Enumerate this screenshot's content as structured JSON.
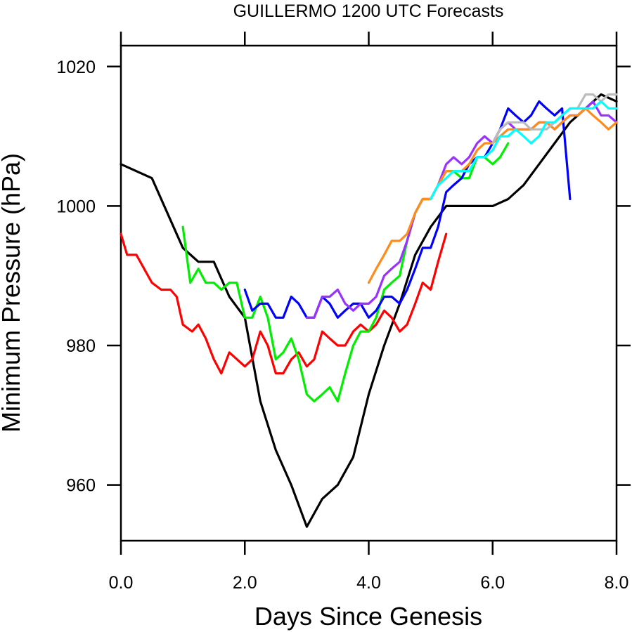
{
  "chart_data": {
    "type": "line",
    "title": "GUILLERMO 1200 UTC Forecasts",
    "xlabel": "Days Since Genesis",
    "ylabel": "Minimum Pressure (hPa)",
    "xlim": [
      0,
      8
    ],
    "ylim": [
      952,
      1023
    ],
    "x_ticks": [
      0,
      2,
      4,
      6,
      8
    ],
    "x_tick_labels": [
      "0.0",
      "2.0",
      "4.0",
      "6.0",
      "8.0"
    ],
    "y_ticks": [
      960,
      980,
      1000,
      1020
    ],
    "y_tick_labels": [
      "960",
      "980",
      "1000",
      "1020"
    ],
    "grid": false,
    "legend": "none",
    "series": [
      {
        "color": "#000000",
        "points": [
          [
            0,
            1006
          ],
          [
            0.5,
            1004
          ],
          [
            1.0,
            994
          ],
          [
            1.25,
            992
          ],
          [
            1.5,
            992
          ],
          [
            1.75,
            987
          ],
          [
            2.0,
            984
          ],
          [
            2.25,
            972
          ],
          [
            2.5,
            965
          ],
          [
            2.75,
            960
          ],
          [
            3.0,
            954
          ],
          [
            3.25,
            958
          ],
          [
            3.5,
            960
          ],
          [
            3.75,
            964
          ],
          [
            4.0,
            973
          ],
          [
            4.25,
            980
          ],
          [
            4.5,
            986
          ],
          [
            4.75,
            993
          ],
          [
            5.0,
            997
          ],
          [
            5.25,
            1000
          ],
          [
            5.5,
            1000
          ],
          [
            6.0,
            1000
          ],
          [
            6.25,
            1001
          ],
          [
            6.5,
            1003
          ],
          [
            6.75,
            1006
          ],
          [
            7.0,
            1009
          ],
          [
            7.25,
            1012
          ],
          [
            7.5,
            1014
          ],
          [
            7.75,
            1016
          ],
          [
            8.0,
            1015
          ]
        ]
      },
      {
        "color": "#ff0000",
        "points": [
          [
            0,
            996
          ],
          [
            0.1,
            993
          ],
          [
            0.25,
            993
          ],
          [
            0.5,
            989
          ],
          [
            0.65,
            988
          ],
          [
            0.8,
            988
          ],
          [
            0.9,
            987
          ],
          [
            1.0,
            983
          ],
          [
            1.15,
            982
          ],
          [
            1.25,
            983
          ],
          [
            1.37,
            981
          ],
          [
            1.5,
            978
          ],
          [
            1.62,
            976
          ],
          [
            1.75,
            979
          ],
          [
            2.0,
            977
          ],
          [
            2.12,
            978
          ],
          [
            2.25,
            982
          ],
          [
            2.37,
            980
          ],
          [
            2.5,
            976
          ],
          [
            2.62,
            976
          ],
          [
            2.75,
            978
          ],
          [
            2.87,
            979
          ],
          [
            3.0,
            977
          ],
          [
            3.12,
            978
          ],
          [
            3.25,
            982
          ],
          [
            3.37,
            981
          ],
          [
            3.5,
            980
          ],
          [
            3.62,
            980
          ],
          [
            3.75,
            982
          ],
          [
            3.87,
            983
          ],
          [
            4.0,
            982
          ],
          [
            4.12,
            983
          ],
          [
            4.25,
            985
          ],
          [
            4.37,
            984
          ],
          [
            4.5,
            982
          ],
          [
            4.62,
            983
          ],
          [
            4.75,
            986
          ],
          [
            4.87,
            989
          ],
          [
            5.0,
            988
          ],
          [
            5.12,
            992
          ],
          [
            5.25,
            996
          ]
        ]
      },
      {
        "color": "#00ee00",
        "points": [
          [
            1.0,
            997
          ],
          [
            1.12,
            989
          ],
          [
            1.25,
            991
          ],
          [
            1.37,
            989
          ],
          [
            1.5,
            989
          ],
          [
            1.62,
            988
          ],
          [
            1.75,
            989
          ],
          [
            1.87,
            989
          ],
          [
            2.0,
            984
          ],
          [
            2.12,
            984
          ],
          [
            2.25,
            987
          ],
          [
            2.37,
            984
          ],
          [
            2.5,
            978
          ],
          [
            2.62,
            979
          ],
          [
            2.75,
            981
          ],
          [
            2.87,
            978
          ],
          [
            3.0,
            973
          ],
          [
            3.12,
            972
          ],
          [
            3.25,
            973
          ],
          [
            3.37,
            974
          ],
          [
            3.5,
            972
          ],
          [
            3.62,
            976
          ],
          [
            3.75,
            980
          ],
          [
            3.87,
            982
          ],
          [
            4.0,
            982
          ],
          [
            4.12,
            984
          ],
          [
            4.25,
            988
          ],
          [
            4.37,
            989
          ],
          [
            4.5,
            990
          ],
          [
            4.62,
            995
          ],
          [
            4.75,
            999
          ],
          [
            4.87,
            1001
          ],
          [
            5.0,
            1001
          ],
          [
            5.12,
            1003
          ],
          [
            5.25,
            1005
          ],
          [
            5.37,
            1005
          ],
          [
            5.5,
            1004
          ],
          [
            5.62,
            1004
          ],
          [
            5.75,
            1007
          ],
          [
            5.87,
            1007
          ],
          [
            6.0,
            1006
          ],
          [
            6.12,
            1007
          ],
          [
            6.25,
            1009
          ]
        ]
      },
      {
        "color": "#0000ff",
        "points": [
          [
            2.0,
            988
          ],
          [
            2.12,
            985
          ],
          [
            2.25,
            986
          ],
          [
            2.37,
            986
          ],
          [
            2.5,
            984
          ],
          [
            2.62,
            984
          ],
          [
            2.75,
            987
          ],
          [
            2.87,
            986
          ],
          [
            3.0,
            984
          ],
          [
            3.12,
            984
          ],
          [
            3.25,
            987
          ],
          [
            3.37,
            986
          ],
          [
            3.5,
            984
          ],
          [
            3.62,
            985
          ],
          [
            3.75,
            986
          ],
          [
            3.87,
            986
          ],
          [
            4.0,
            984
          ],
          [
            4.12,
            985
          ],
          [
            4.25,
            987
          ],
          [
            4.37,
            987
          ],
          [
            4.5,
            986
          ],
          [
            4.62,
            988
          ],
          [
            4.75,
            991
          ],
          [
            4.87,
            994
          ],
          [
            5.0,
            994
          ],
          [
            5.12,
            997
          ],
          [
            5.25,
            1002
          ],
          [
            5.37,
            1003
          ],
          [
            5.5,
            1004
          ],
          [
            5.62,
            1006
          ],
          [
            5.75,
            1007
          ],
          [
            5.87,
            1007
          ],
          [
            6.0,
            1009
          ],
          [
            6.12,
            1011
          ],
          [
            6.25,
            1014
          ],
          [
            6.37,
            1013
          ],
          [
            6.5,
            1012
          ],
          [
            6.62,
            1013
          ],
          [
            6.75,
            1015
          ],
          [
            6.87,
            1014
          ],
          [
            7.0,
            1013
          ],
          [
            7.12,
            1014
          ],
          [
            7.25,
            1001
          ]
        ]
      },
      {
        "color": "#9932ff",
        "points": [
          [
            3.0,
            984
          ],
          [
            3.12,
            984
          ],
          [
            3.25,
            987
          ],
          [
            3.37,
            987
          ],
          [
            3.5,
            988
          ],
          [
            3.62,
            986
          ],
          [
            3.75,
            985
          ],
          [
            3.87,
            986
          ],
          [
            4.0,
            986
          ],
          [
            4.12,
            987
          ],
          [
            4.25,
            990
          ],
          [
            4.37,
            991
          ],
          [
            4.5,
            992
          ],
          [
            4.62,
            995
          ],
          [
            4.75,
            999
          ],
          [
            4.87,
            1001
          ],
          [
            5.0,
            1001
          ],
          [
            5.12,
            1003
          ],
          [
            5.25,
            1006
          ],
          [
            5.37,
            1007
          ],
          [
            5.5,
            1006
          ],
          [
            5.62,
            1007
          ],
          [
            5.75,
            1009
          ],
          [
            5.87,
            1010
          ],
          [
            6.0,
            1009
          ],
          [
            6.12,
            1011
          ],
          [
            6.25,
            1012
          ],
          [
            6.37,
            1011
          ],
          [
            6.5,
            1011
          ],
          [
            6.62,
            1011
          ],
          [
            6.75,
            1012
          ],
          [
            6.87,
            1012
          ],
          [
            7.0,
            1011
          ],
          [
            7.12,
            1012
          ],
          [
            7.25,
            1013
          ],
          [
            7.37,
            1013
          ],
          [
            7.5,
            1014
          ],
          [
            7.62,
            1015
          ],
          [
            7.75,
            1013
          ],
          [
            7.87,
            1013
          ],
          [
            8.0,
            1012
          ]
        ]
      },
      {
        "color": "#ff8c1a",
        "points": [
          [
            4.0,
            989
          ],
          [
            4.12,
            991
          ],
          [
            4.25,
            993
          ],
          [
            4.37,
            995
          ],
          [
            4.5,
            995
          ],
          [
            4.62,
            996
          ],
          [
            4.75,
            999
          ],
          [
            4.87,
            1001
          ],
          [
            5.0,
            1001
          ],
          [
            5.12,
            1003
          ],
          [
            5.25,
            1005
          ],
          [
            5.37,
            1005
          ],
          [
            5.5,
            1005
          ],
          [
            5.62,
            1006
          ],
          [
            5.75,
            1008
          ],
          [
            5.87,
            1009
          ],
          [
            6.0,
            1009
          ],
          [
            6.12,
            1010
          ],
          [
            6.25,
            1011
          ],
          [
            6.37,
            1011
          ],
          [
            6.5,
            1011
          ],
          [
            6.62,
            1011
          ],
          [
            6.75,
            1012
          ],
          [
            6.87,
            1012
          ],
          [
            7.0,
            1011
          ],
          [
            7.12,
            1012
          ],
          [
            7.25,
            1013
          ],
          [
            7.37,
            1013
          ],
          [
            7.5,
            1014
          ],
          [
            7.62,
            1013
          ],
          [
            7.75,
            1012
          ],
          [
            7.87,
            1011
          ],
          [
            8.0,
            1012
          ]
        ]
      },
      {
        "color": "#bbbbbb",
        "points": [
          [
            6.0,
            1009
          ],
          [
            6.12,
            1011
          ],
          [
            6.25,
            1012
          ],
          [
            6.37,
            1012
          ],
          [
            6.5,
            1012
          ],
          [
            6.62,
            1011
          ],
          [
            6.75,
            1011
          ],
          [
            6.87,
            1011
          ],
          [
            7.0,
            1012
          ],
          [
            7.12,
            1013
          ],
          [
            7.25,
            1014
          ],
          [
            7.37,
            1014
          ],
          [
            7.5,
            1016
          ],
          [
            7.62,
            1016
          ],
          [
            7.75,
            1015
          ],
          [
            7.87,
            1016
          ],
          [
            8.0,
            1016
          ]
        ]
      },
      {
        "color": "#00ffff",
        "points": [
          [
            5.0,
            1001
          ],
          [
            5.12,
            1003
          ],
          [
            5.25,
            1004
          ],
          [
            5.37,
            1005
          ],
          [
            5.5,
            1005
          ],
          [
            5.62,
            1005
          ],
          [
            5.75,
            1007
          ],
          [
            5.87,
            1007
          ],
          [
            6.0,
            1008
          ],
          [
            6.12,
            1010
          ],
          [
            6.25,
            1010
          ],
          [
            6.37,
            1011
          ],
          [
            6.5,
            1010
          ],
          [
            6.62,
            1009
          ],
          [
            6.75,
            1010
          ],
          [
            6.87,
            1012
          ],
          [
            7.0,
            1012
          ],
          [
            7.12,
            1013
          ],
          [
            7.25,
            1014
          ],
          [
            7.37,
            1014
          ],
          [
            7.5,
            1014
          ],
          [
            7.62,
            1014
          ],
          [
            7.75,
            1015
          ],
          [
            7.87,
            1014
          ],
          [
            8.0,
            1014
          ]
        ]
      }
    ]
  }
}
